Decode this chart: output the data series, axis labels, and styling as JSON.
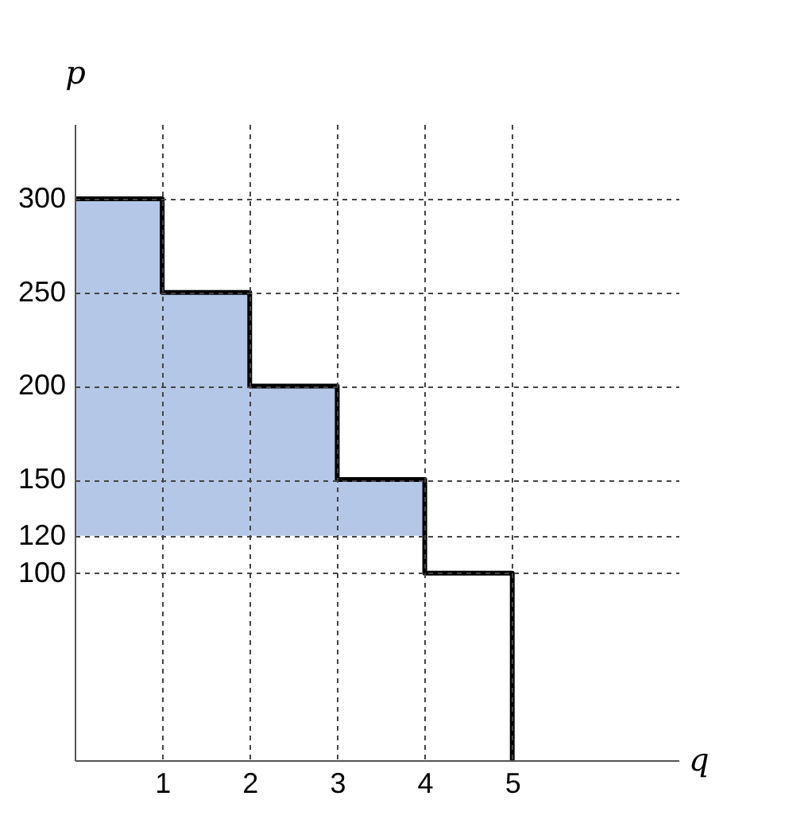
{
  "chart_data": {
    "type": "step",
    "xlabel": "q",
    "ylabel": "p",
    "xlim": [
      0,
      6.9
    ],
    "ylim": [
      0,
      340
    ],
    "xticks": [
      1,
      2,
      3,
      4,
      5
    ],
    "yticks": [
      100,
      120,
      150,
      200,
      250,
      300
    ],
    "grid": true,
    "legend": false,
    "marker": "none",
    "line_style": "solid",
    "series": [
      {
        "type": "bar",
        "x": [
          0.5,
          1.5,
          2.5,
          3.5
        ],
        "base": [
          120,
          120,
          120,
          120
        ],
        "values": [
          180,
          130,
          80,
          30
        ],
        "color": "#b4c7e7"
      },
      {
        "type": "step",
        "x": [
          0,
          1,
          2,
          3,
          4,
          5
        ],
        "values": [
          300,
          250,
          200,
          150,
          100,
          0
        ],
        "color": "#000000"
      }
    ]
  }
}
